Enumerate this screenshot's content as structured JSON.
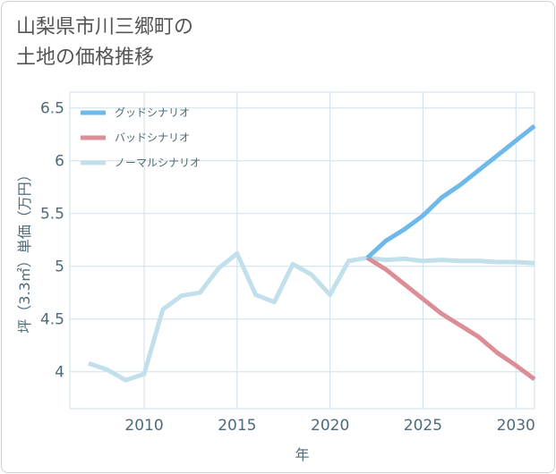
{
  "title": {
    "line1": "山梨県市川三郷町の",
    "line2": "土地の価格推移"
  },
  "colors": {
    "grid": "#cde0ea",
    "axis_text": "#4d6b7a",
    "good": "#6cb9ea",
    "bad": "#dc8e97",
    "normal": "#c2dfec"
  },
  "chart_data": {
    "type": "line",
    "title": "山梨県市川三郷町の土地の価格推移",
    "xlabel": "年",
    "ylabel": "坪（3.3㎡）単価（万円）",
    "xlim": [
      2006,
      2031
    ],
    "ylim": [
      3.65,
      6.65
    ],
    "xticks": [
      2010,
      2015,
      2020,
      2025,
      2030
    ],
    "yticks": [
      4,
      4.5,
      5,
      5.5,
      6,
      6.5
    ],
    "xtick_labels": [
      "2010",
      "2015",
      "2020",
      "2025",
      "2030"
    ],
    "ytick_labels": [
      "4",
      "4.5",
      "5",
      "5.5",
      "6",
      "6.5"
    ],
    "grid": true,
    "legend_position": "top-left",
    "series": [
      {
        "name": "グッドシナリオ",
        "color": "#6cb9ea",
        "x": [
          2022,
          2023,
          2024,
          2025,
          2026,
          2027,
          2028,
          2029,
          2030,
          2031
        ],
        "y": [
          5.08,
          5.24,
          5.35,
          5.48,
          5.65,
          5.77,
          5.91,
          6.05,
          6.19,
          6.33
        ]
      },
      {
        "name": "バッドシナリオ",
        "color": "#dc8e97",
        "x": [
          2022,
          2023,
          2024,
          2025,
          2026,
          2027,
          2028,
          2029,
          2030,
          2031
        ],
        "y": [
          5.08,
          4.97,
          4.83,
          4.69,
          4.55,
          4.44,
          4.33,
          4.18,
          4.06,
          3.93
        ]
      },
      {
        "name": "ノーマルシナリオ",
        "color": "#c2dfec",
        "x": [
          2007,
          2008,
          2009,
          2010,
          2011,
          2012,
          2013,
          2014,
          2015,
          2016,
          2017,
          2018,
          2019,
          2020,
          2021,
          2022,
          2023,
          2024,
          2025,
          2026,
          2027,
          2028,
          2029,
          2030,
          2031
        ],
        "y": [
          4.08,
          4.02,
          3.92,
          3.98,
          4.59,
          4.72,
          4.75,
          4.98,
          5.12,
          4.73,
          4.66,
          5.02,
          4.92,
          4.73,
          5.05,
          5.08,
          5.06,
          5.07,
          5.05,
          5.06,
          5.05,
          5.05,
          5.04,
          5.04,
          5.03
        ]
      }
    ]
  }
}
